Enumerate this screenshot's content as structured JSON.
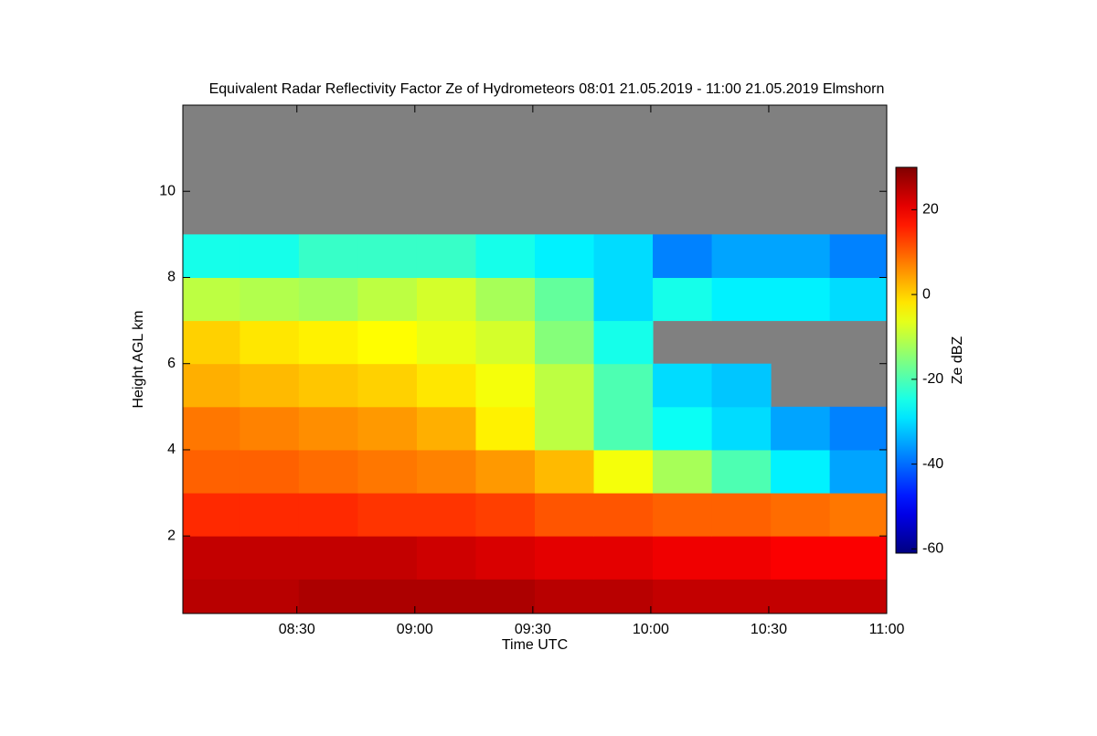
{
  "chart_data": {
    "type": "heatmap",
    "title": "Equivalent Radar Reflectivity Factor Ze of Hydrometeors   08:01 21.05.2019 - 11:00 21.05.2019 Elmshorn",
    "x_label": "Time UTC",
    "y_label": "Height AGL km",
    "colorbar_label": "Ze dBZ",
    "colormap": "jet",
    "missing_color": "#808080",
    "x": [
      "08:08",
      "08:23",
      "08:38",
      "08:53",
      "09:08",
      "09:23",
      "09:38",
      "09:53",
      "10:08",
      "10:23",
      "10:38",
      "10:53"
    ],
    "y": [
      0.5,
      1.5,
      2.5,
      3.5,
      4.5,
      5.5,
      6.5,
      7.5,
      8.5,
      9.5,
      10.5,
      11.5
    ],
    "z": [
      [
        25,
        25,
        26,
        26,
        26,
        26,
        25,
        25,
        24,
        24,
        24,
        24
      ],
      [
        24,
        24,
        24,
        24,
        23,
        22,
        21,
        21,
        20,
        20,
        19,
        19
      ],
      [
        15,
        15,
        15,
        14,
        14,
        13,
        11,
        11,
        10,
        10,
        9,
        8
      ],
      [
        10,
        10,
        9,
        8,
        7,
        5,
        2,
        -5,
        -12,
        -20,
        -28,
        -35
      ],
      [
        8,
        7,
        6,
        5,
        3,
        -3,
        -10,
        -20,
        -26,
        -30,
        -35,
        -38
      ],
      [
        3,
        2,
        1,
        0,
        -2,
        -5,
        -10,
        -20,
        -30,
        -32,
        null,
        null
      ],
      [
        0,
        -2,
        -3,
        -4,
        -6,
        -8,
        -15,
        -25,
        null,
        null,
        null,
        null
      ],
      [
        -10,
        -11,
        -12,
        -10,
        -8,
        -12,
        -18,
        -30,
        -25,
        -28,
        -28,
        -30
      ],
      [
        -25,
        -25,
        -22,
        -22,
        -22,
        -25,
        -28,
        -30,
        -38,
        -35,
        -35,
        -38
      ],
      [
        null,
        null,
        null,
        null,
        null,
        null,
        null,
        null,
        null,
        null,
        null,
        null
      ],
      [
        null,
        null,
        null,
        null,
        null,
        null,
        null,
        null,
        null,
        null,
        null,
        null
      ],
      [
        null,
        null,
        null,
        null,
        null,
        null,
        null,
        null,
        null,
        null,
        null,
        null
      ]
    ],
    "xlim": [
      "08:01",
      "11:00"
    ],
    "xticks": [
      "08:30",
      "09:00",
      "09:30",
      "10:00",
      "10:30",
      "11:00"
    ],
    "ylim": [
      0.2,
      12
    ],
    "yticks": [
      2,
      4,
      6,
      8,
      10
    ],
    "clim": [
      -61,
      30
    ],
    "cticks": [
      -60,
      -40,
      -20,
      0,
      20
    ]
  }
}
